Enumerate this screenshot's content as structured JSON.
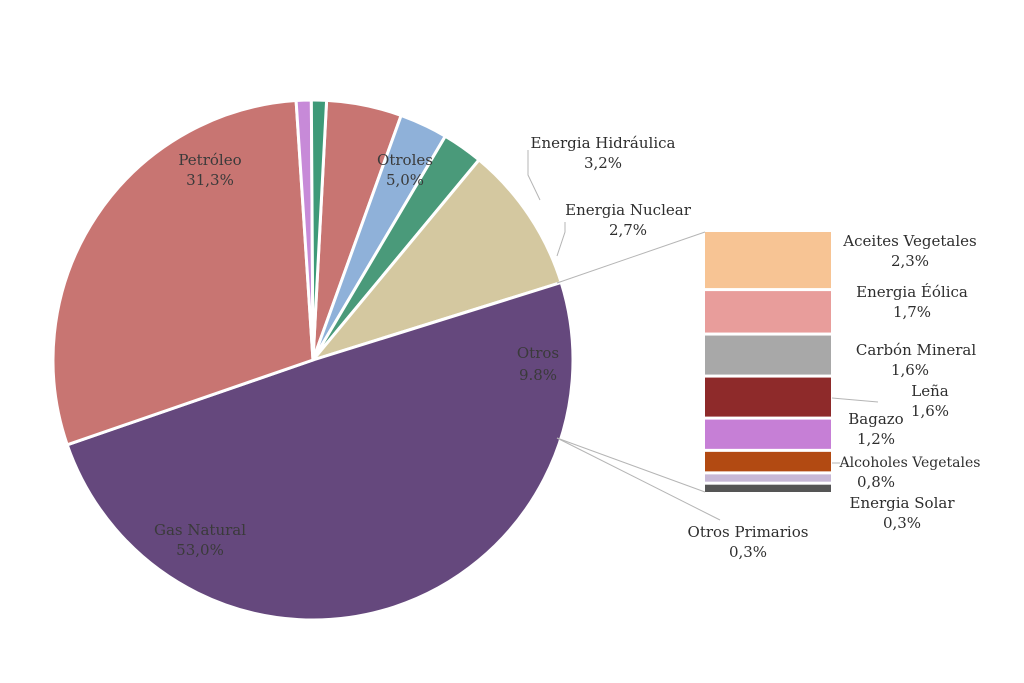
{
  "chart_data": {
    "type": "pie",
    "title": "",
    "slices": [
      {
        "label": "Otroles",
        "value": 5.0,
        "display": "5,0%",
        "color": "#c87572"
      },
      {
        "label": "Energia Hidráulica",
        "value": 3.2,
        "display": "3,2%",
        "color": "#8fb1d9"
      },
      {
        "label": "Energia Nuclear",
        "value": 2.7,
        "display": "2,7%",
        "color": "#4a9a7a"
      },
      {
        "label": "Otros",
        "value": 9.8,
        "display": "9.8%",
        "color": "#d4c8a0"
      },
      {
        "label": "Gas Natural",
        "value": 53.0,
        "display": "53,0%",
        "color": "#65487d"
      },
      {
        "label": "Petróleo",
        "value": 31.3,
        "display": "31,3%",
        "color": "#c87572"
      },
      {
        "label": "",
        "value": 1.0,
        "display": "",
        "color": "#c78ad8"
      },
      {
        "label": "",
        "value": 1.0,
        "display": "",
        "color": "#3e9a78"
      }
    ],
    "breakdown": {
      "parent": "Otros",
      "items": [
        {
          "label": "Aceites Vegetales",
          "value": 2.3,
          "display": "2,3%",
          "color": "#f7c494"
        },
        {
          "label": "Energia Éólica",
          "value": 1.7,
          "display": "1,7%",
          "color": "#e89d9b"
        },
        {
          "label": "Carbón Mineral",
          "value": 1.6,
          "display": "1,6%",
          "color": "#a8a8a8"
        },
        {
          "label": "Leña",
          "value": 1.6,
          "display": "1,6%",
          "color": "#8e2a2a"
        },
        {
          "label": "Bagazo",
          "value": 1.2,
          "display": "1,2%",
          "color": "#c67fd6"
        },
        {
          "label": "Alcoholes Vegetales",
          "value": 0.8,
          "display": "0,8%",
          "color": "#b24a12"
        },
        {
          "label": "Energia Solar",
          "value": 0.3,
          "display": "0,3%",
          "color": "#c7b8d6"
        },
        {
          "label": "Otros Primarios",
          "value": 0.3,
          "display": "0,3%",
          "color": "#555555"
        }
      ]
    }
  }
}
